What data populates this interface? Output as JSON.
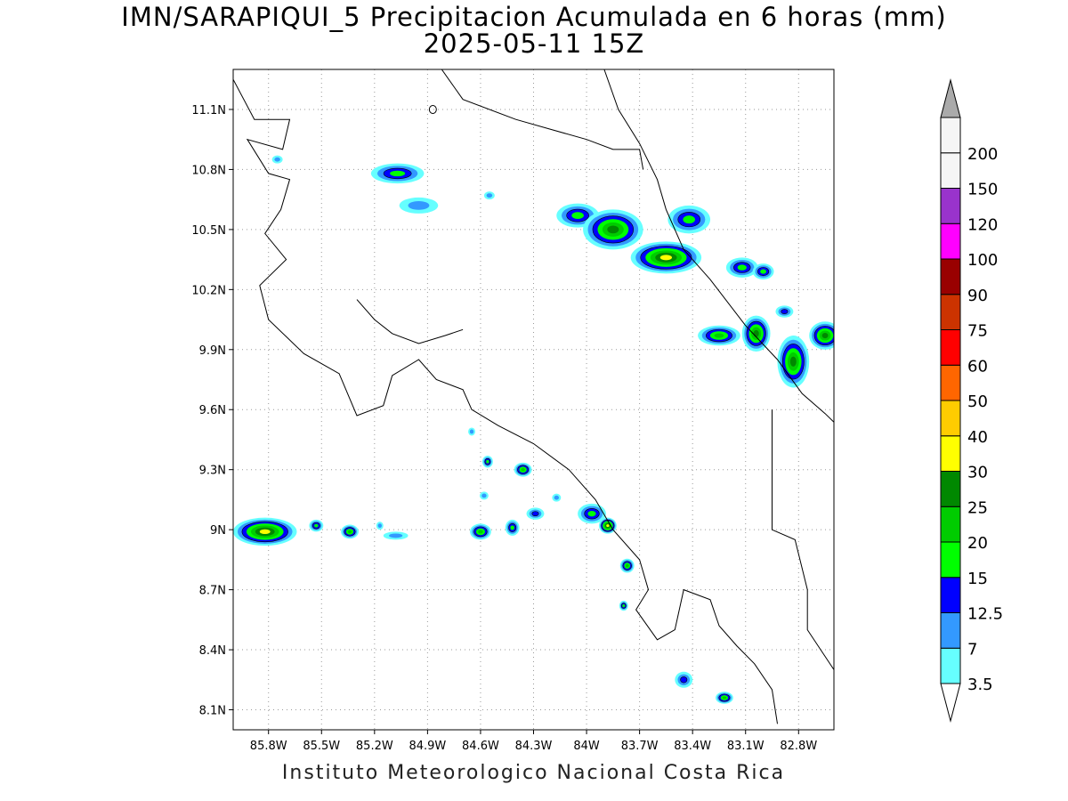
{
  "header": {
    "title": "IMN/SARAPIQUI_5 Precipitacion Acumulada en 6 horas (mm)",
    "subtitle": "2025-05-11 15Z"
  },
  "footer": {
    "credit": "Instituto Meteorologico Nacional Costa Rica"
  },
  "map": {
    "lon_range": [
      -86.0,
      -82.6
    ],
    "lat_range": [
      8.0,
      11.3
    ],
    "lat_ticks": [
      {
        "value": 11.1,
        "label": "11.1N"
      },
      {
        "value": 10.8,
        "label": "10.8N"
      },
      {
        "value": 10.5,
        "label": "10.5N"
      },
      {
        "value": 10.2,
        "label": "10.2N"
      },
      {
        "value": 9.9,
        "label": "9.9N"
      },
      {
        "value": 9.6,
        "label": "9.6N"
      },
      {
        "value": 9.3,
        "label": "9.3N"
      },
      {
        "value": 9.0,
        "label": "9N"
      },
      {
        "value": 8.7,
        "label": "8.7N"
      },
      {
        "value": 8.4,
        "label": "8.4N"
      },
      {
        "value": 8.1,
        "label": "8.1N"
      }
    ],
    "lon_ticks": [
      {
        "value": -85.8,
        "label": "85.8W"
      },
      {
        "value": -85.5,
        "label": "85.5W"
      },
      {
        "value": -85.2,
        "label": "85.2W"
      },
      {
        "value": -84.9,
        "label": "84.9W"
      },
      {
        "value": -84.6,
        "label": "84.6W"
      },
      {
        "value": -84.3,
        "label": "84.3W"
      },
      {
        "value": -84.0,
        "label": "84W"
      },
      {
        "value": -83.7,
        "label": "83.7W"
      },
      {
        "value": -83.4,
        "label": "83.4W"
      },
      {
        "value": -83.1,
        "label": "83.1W"
      },
      {
        "value": -82.8,
        "label": "82.8W"
      }
    ],
    "grid": true
  },
  "colorbar": {
    "labels": [
      "3.5",
      "7",
      "12.5",
      "15",
      "20",
      "25",
      "30",
      "40",
      "50",
      "60",
      "75",
      "90",
      "100",
      "120",
      "150",
      "200"
    ],
    "colors": [
      "#66ffff",
      "#3399ff",
      "#0000ff",
      "#00ff00",
      "#00cc00",
      "#008800",
      "#ffff00",
      "#ffcc00",
      "#ff6600",
      "#ff0000",
      "#cc3300",
      "#990000",
      "#ff00ff",
      "#9933cc",
      "#f5f5f5",
      "#aaaaaa"
    ],
    "low_end_color": "#ffffff",
    "high_end_color": "#aaaaaa"
  },
  "precip_cells": [
    {
      "lon": -85.82,
      "lat": 8.99,
      "rx": 0.18,
      "ry": 0.07,
      "level": 6
    },
    {
      "lon": -85.53,
      "lat": 9.02,
      "rx": 0.04,
      "ry": 0.03,
      "level": 3
    },
    {
      "lon": -85.34,
      "lat": 8.99,
      "rx": 0.05,
      "ry": 0.035,
      "level": 4
    },
    {
      "lon": -85.08,
      "lat": 8.97,
      "rx": 0.07,
      "ry": 0.02,
      "level": 1
    },
    {
      "lon": -85.17,
      "lat": 9.02,
      "rx": 0.02,
      "ry": 0.02,
      "level": 1
    },
    {
      "lon": -84.6,
      "lat": 8.99,
      "rx": 0.06,
      "ry": 0.04,
      "level": 4
    },
    {
      "lon": -84.42,
      "lat": 9.01,
      "rx": 0.04,
      "ry": 0.04,
      "level": 3
    },
    {
      "lon": -84.29,
      "lat": 9.08,
      "rx": 0.05,
      "ry": 0.03,
      "level": 2
    },
    {
      "lon": -83.97,
      "lat": 9.08,
      "rx": 0.08,
      "ry": 0.05,
      "level": 3
    },
    {
      "lon": -83.88,
      "lat": 9.02,
      "rx": 0.05,
      "ry": 0.04,
      "level": 6
    },
    {
      "lon": -84.56,
      "lat": 9.34,
      "rx": 0.03,
      "ry": 0.03,
      "level": 3
    },
    {
      "lon": -84.36,
      "lat": 9.3,
      "rx": 0.05,
      "ry": 0.035,
      "level": 4
    },
    {
      "lon": -84.58,
      "lat": 9.17,
      "rx": 0.025,
      "ry": 0.02,
      "level": 1
    },
    {
      "lon": -84.17,
      "lat": 9.16,
      "rx": 0.025,
      "ry": 0.02,
      "level": 1
    },
    {
      "lon": -84.65,
      "lat": 9.49,
      "rx": 0.02,
      "ry": 0.02,
      "level": 1
    },
    {
      "lon": -83.77,
      "lat": 8.82,
      "rx": 0.04,
      "ry": 0.035,
      "level": 4
    },
    {
      "lon": -83.79,
      "lat": 8.62,
      "rx": 0.025,
      "ry": 0.025,
      "level": 3
    },
    {
      "lon": -83.45,
      "lat": 8.25,
      "rx": 0.05,
      "ry": 0.04,
      "level": 2
    },
    {
      "lon": -83.22,
      "lat": 8.16,
      "rx": 0.05,
      "ry": 0.03,
      "level": 4
    },
    {
      "lon": -85.75,
      "lat": 10.85,
      "rx": 0.03,
      "ry": 0.02,
      "level": 1
    },
    {
      "lon": -85.07,
      "lat": 10.78,
      "rx": 0.15,
      "ry": 0.05,
      "level": 3
    },
    {
      "lon": -84.95,
      "lat": 10.62,
      "rx": 0.11,
      "ry": 0.04,
      "level": 1
    },
    {
      "lon": -84.55,
      "lat": 10.67,
      "rx": 0.03,
      "ry": 0.02,
      "level": 1
    },
    {
      "lon": -84.05,
      "lat": 10.57,
      "rx": 0.12,
      "ry": 0.06,
      "level": 3
    },
    {
      "lon": -83.85,
      "lat": 10.5,
      "rx": 0.17,
      "ry": 0.1,
      "level": 5
    },
    {
      "lon": -83.55,
      "lat": 10.36,
      "rx": 0.2,
      "ry": 0.08,
      "level": 6
    },
    {
      "lon": -83.42,
      "lat": 10.55,
      "rx": 0.12,
      "ry": 0.07,
      "level": 3
    },
    {
      "lon": -83.12,
      "lat": 10.31,
      "rx": 0.09,
      "ry": 0.05,
      "level": 3
    },
    {
      "lon": -83.0,
      "lat": 10.29,
      "rx": 0.06,
      "ry": 0.04,
      "level": 3
    },
    {
      "lon": -83.25,
      "lat": 9.97,
      "rx": 0.12,
      "ry": 0.05,
      "level": 4
    },
    {
      "lon": -83.04,
      "lat": 9.98,
      "rx": 0.08,
      "ry": 0.09,
      "level": 5
    },
    {
      "lon": -82.83,
      "lat": 9.84,
      "rx": 0.09,
      "ry": 0.13,
      "level": 5
    },
    {
      "lon": -82.65,
      "lat": 9.97,
      "rx": 0.09,
      "ry": 0.07,
      "level": 5
    },
    {
      "lon": -82.88,
      "lat": 10.09,
      "rx": 0.05,
      "ry": 0.03,
      "level": 2
    }
  ],
  "lakes": [
    {
      "lon": -84.87,
      "lat": 11.1,
      "rx": 0.02,
      "ry": 0.02
    }
  ],
  "coastlines": [
    [
      [
        -86.0,
        11.25
      ],
      [
        -85.88,
        11.05
      ],
      [
        -85.68,
        11.05
      ],
      [
        -85.72,
        10.9
      ],
      [
        -85.92,
        10.95
      ],
      [
        -85.8,
        10.78
      ],
      [
        -85.68,
        10.75
      ],
      [
        -85.73,
        10.6
      ],
      [
        -85.82,
        10.48
      ],
      [
        -85.7,
        10.35
      ],
      [
        -85.85,
        10.22
      ],
      [
        -85.8,
        10.05
      ],
      [
        -85.6,
        9.88
      ],
      [
        -85.4,
        9.78
      ],
      [
        -85.3,
        9.57
      ],
      [
        -85.15,
        9.62
      ],
      [
        -85.1,
        9.77
      ],
      [
        -84.95,
        9.85
      ],
      [
        -84.85,
        9.75
      ],
      [
        -84.7,
        9.7
      ],
      [
        -84.65,
        9.6
      ],
      [
        -84.5,
        9.52
      ],
      [
        -84.3,
        9.43
      ],
      [
        -84.1,
        9.3
      ],
      [
        -83.95,
        9.15
      ],
      [
        -83.85,
        9.0
      ],
      [
        -83.7,
        8.85
      ],
      [
        -83.65,
        8.7
      ],
      [
        -83.72,
        8.6
      ],
      [
        -83.6,
        8.45
      ],
      [
        -83.5,
        8.5
      ],
      [
        -83.45,
        8.7
      ],
      [
        -83.3,
        8.65
      ],
      [
        -83.25,
        8.52
      ],
      [
        -83.15,
        8.42
      ],
      [
        -83.05,
        8.33
      ],
      [
        -82.95,
        8.2
      ],
      [
        -82.92,
        8.03
      ]
    ],
    [
      [
        -85.3,
        10.15
      ],
      [
        -85.2,
        10.05
      ],
      [
        -85.1,
        9.98
      ],
      [
        -84.95,
        9.93
      ],
      [
        -84.8,
        9.97
      ],
      [
        -84.7,
        10.0
      ]
    ],
    [
      [
        -84.82,
        11.3
      ],
      [
        -84.7,
        11.15
      ],
      [
        -84.4,
        11.05
      ],
      [
        -84.2,
        11.0
      ],
      [
        -84.0,
        10.95
      ],
      [
        -83.85,
        10.9
      ],
      [
        -83.7,
        10.9
      ],
      [
        -83.68,
        10.8
      ]
    ],
    [
      [
        -83.9,
        11.3
      ],
      [
        -83.82,
        11.1
      ],
      [
        -83.7,
        10.93
      ],
      [
        -83.6,
        10.75
      ],
      [
        -83.55,
        10.6
      ],
      [
        -83.45,
        10.4
      ],
      [
        -83.3,
        10.25
      ],
      [
        -83.1,
        10.02
      ],
      [
        -82.92,
        9.85
      ],
      [
        -82.78,
        9.68
      ],
      [
        -82.65,
        9.58
      ],
      [
        -82.58,
        9.52
      ]
    ],
    [
      [
        -82.95,
        9.6
      ],
      [
        -82.95,
        9.0
      ],
      [
        -82.82,
        8.95
      ],
      [
        -82.75,
        8.7
      ],
      [
        -82.75,
        8.5
      ],
      [
        -82.6,
        8.3
      ]
    ]
  ]
}
